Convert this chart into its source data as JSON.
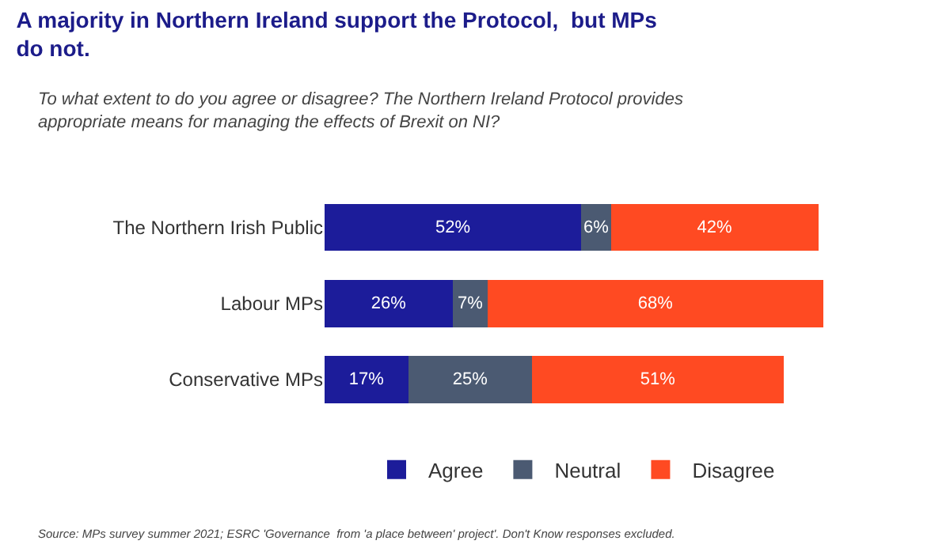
{
  "chart_data": {
    "type": "bar",
    "orientation": "horizontal",
    "stacked": true,
    "title": "A majority in Northern Ireland support the Protocol,  but MPs do not.",
    "subtitle": "To what extent to do you agree or disagree? The Northern Ireland Protocol provides appropriate means for managing the effects of Brexit on NI?",
    "categories": [
      "The Northern Irish Public",
      "Labour MPs",
      "Conservative MPs"
    ],
    "series": [
      {
        "name": "Agree",
        "color": "#1c1c9a",
        "values": [
          52,
          26,
          17
        ],
        "value_labels": [
          "52%",
          "26%",
          "17%"
        ]
      },
      {
        "name": "Neutral",
        "color": "#4b5a72",
        "values": [
          6,
          7,
          25
        ],
        "value_labels": [
          "6%",
          "7%",
          "25%"
        ]
      },
      {
        "name": "Disagree",
        "color": "#ff4a22",
        "values": [
          42,
          68,
          51
        ],
        "value_labels": [
          "42%",
          "68%",
          "51%"
        ]
      }
    ],
    "xlim": [
      0,
      101
    ],
    "tick_labels": "y",
    "legend": "bottom",
    "annotations": [
      "Source: MPs survey summer 2021; ESRC 'Governance  from 'a place between' project'. Don't Know responses excluded."
    ]
  }
}
